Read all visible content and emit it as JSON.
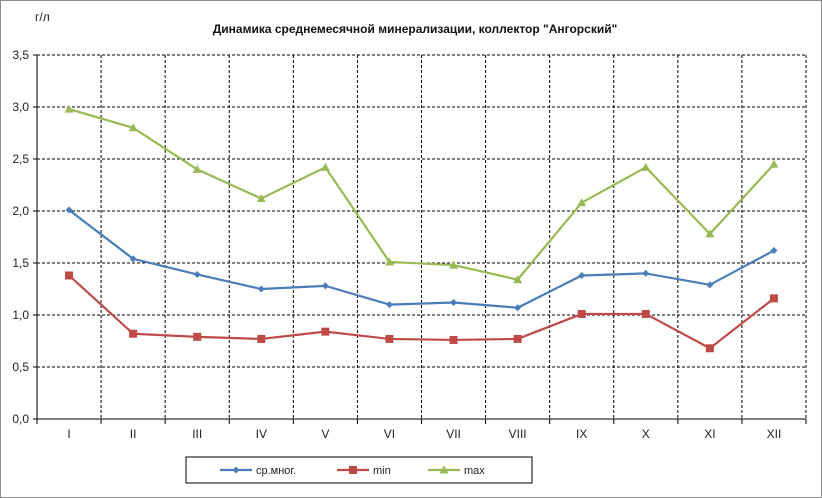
{
  "chart_data": {
    "type": "line",
    "title": "Динамика среднемесячной минерализации, коллектор \"Ангорский\"",
    "ylabel": "г/л",
    "xlabel": "",
    "categories": [
      "I",
      "II",
      "III",
      "IV",
      "V",
      "VI",
      "VII",
      "VIII",
      "IX",
      "X",
      "XI",
      "XII"
    ],
    "ylim": [
      0,
      3.5
    ],
    "yticks": [
      "0,0",
      "0,5",
      "1,0",
      "1,5",
      "2,0",
      "2,5",
      "3,0",
      "3,5"
    ],
    "grid": true,
    "legend_position": "bottom",
    "series": [
      {
        "name": "ср.мног.",
        "color": "#4a7ebb",
        "marker": "diamond",
        "values": [
          2.01,
          1.54,
          1.39,
          1.25,
          1.28,
          1.1,
          1.12,
          1.07,
          1.38,
          1.4,
          1.29,
          1.62
        ]
      },
      {
        "name": "min",
        "color": "#be4b48",
        "marker": "square",
        "values": [
          1.38,
          0.82,
          0.79,
          0.77,
          0.84,
          0.77,
          0.76,
          0.77,
          1.01,
          1.01,
          0.68,
          1.16
        ]
      },
      {
        "name": "max",
        "color": "#98b954",
        "marker": "triangle",
        "values": [
          2.98,
          2.8,
          2.4,
          2.12,
          2.42,
          1.51,
          1.48,
          1.34,
          2.08,
          2.42,
          1.78,
          2.45
        ]
      }
    ]
  }
}
